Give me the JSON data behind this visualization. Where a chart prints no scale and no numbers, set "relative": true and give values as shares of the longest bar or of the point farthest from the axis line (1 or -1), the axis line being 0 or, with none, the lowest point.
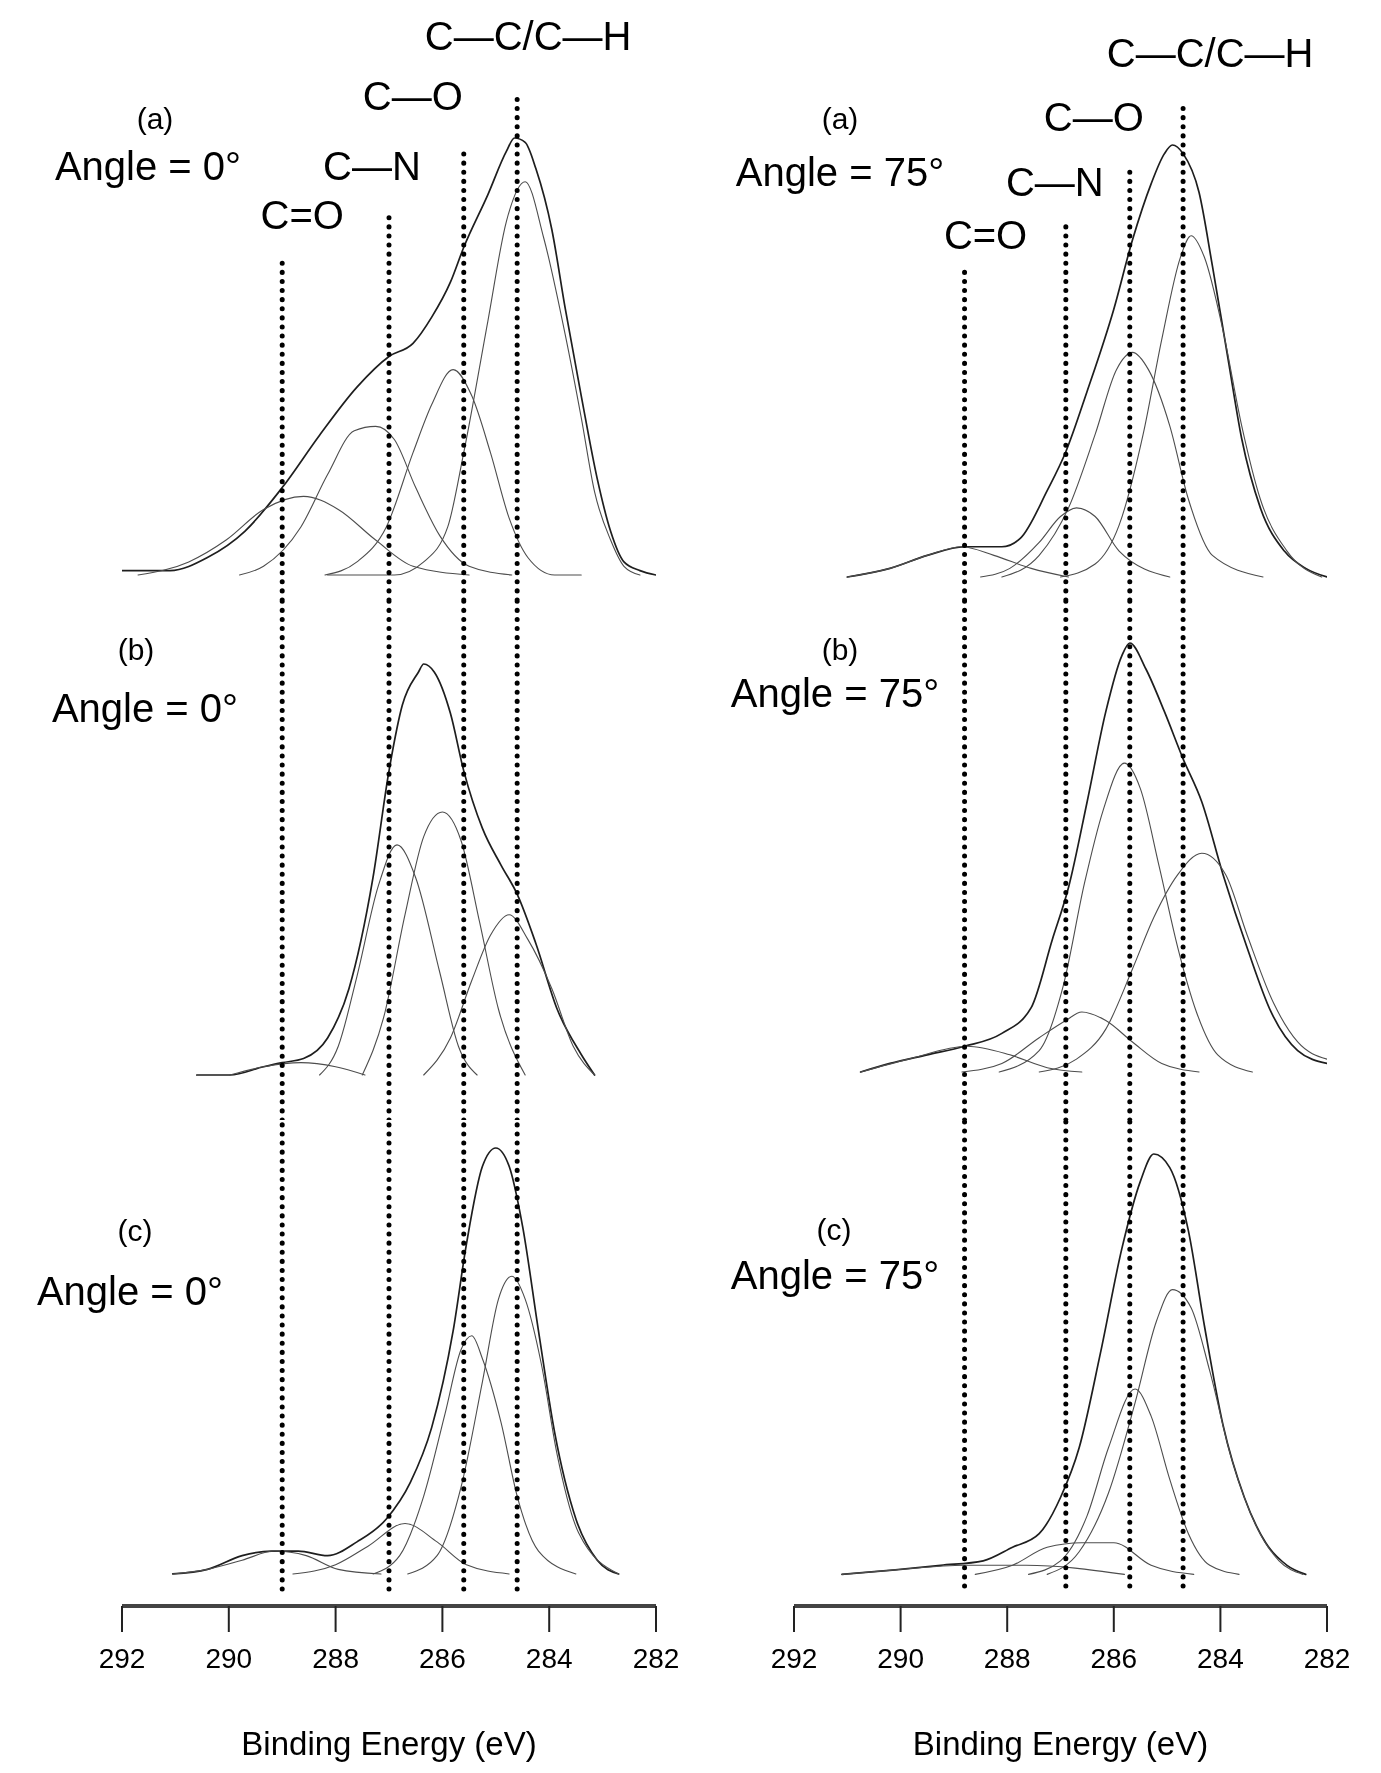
{
  "chart_data": [
    {
      "type": "line",
      "annotations": [
        "(a)",
        "Angle = 0°"
      ],
      "relative": true,
      "xlim": [
        292,
        282
      ],
      "tick_labels": false,
      "ref_lines": [
        {
          "axis": "x",
          "value": 289.0,
          "label": "C=O",
          "line_style": "dotted",
          "color": "#000000"
        },
        {
          "axis": "x",
          "value": 287.0,
          "label": "C—N",
          "line_style": "dotted",
          "color": "#000000"
        },
        {
          "axis": "x",
          "value": 285.6,
          "label": "C—O",
          "line_style": "dotted",
          "color": "#000000"
        },
        {
          "axis": "x",
          "value": 284.6,
          "label": "C—C/C—H",
          "line_style": "dotted",
          "color": "#000000"
        }
      ],
      "series": [
        {
          "color": "#1e1e1e",
          "x": [
            292.0,
            291.1,
            290.4,
            289.7,
            289.0,
            288.3,
            287.6,
            287.0,
            286.55,
            286.2,
            285.85,
            285.6,
            285.15,
            284.8,
            284.65,
            284.45,
            284.25,
            283.95,
            283.7,
            283.4,
            283.1,
            282.85,
            282.6,
            282.3,
            282.0
          ],
          "values": [
            0.01,
            0.01,
            0.04,
            0.1,
            0.2,
            0.32,
            0.43,
            0.5,
            0.53,
            0.59,
            0.67,
            0.75,
            0.87,
            0.97,
            1.0,
            0.99,
            0.93,
            0.79,
            0.61,
            0.41,
            0.22,
            0.1,
            0.03,
            0.01,
            0
          ]
        },
        {
          "color": "#4d4d4d",
          "x": [
            291.7,
            290.75,
            290.05,
            289.35,
            288.6,
            287.95,
            287.25,
            286.55,
            285.5
          ],
          "values": [
            0,
            0.03,
            0.08,
            0.15,
            0.18,
            0.15,
            0.08,
            0.02,
            0
          ]
        },
        {
          "color": "#4d4d4d",
          "x": [
            289.8,
            289.35,
            288.65,
            288.15,
            287.65,
            287.25,
            286.9,
            286.5,
            286.05,
            285.5,
            284.7
          ],
          "values": [
            0,
            0.02,
            0.11,
            0.23,
            0.33,
            0.34,
            0.31,
            0.2,
            0.09,
            0.02,
            0
          ]
        },
        {
          "color": "#4d4d4d",
          "x": [
            288.2,
            287.6,
            287.05,
            286.55,
            286.2,
            285.8,
            285.45,
            285.1,
            284.75,
            284.4,
            283.9,
            283.4
          ],
          "values": [
            0,
            0.03,
            0.11,
            0.28,
            0.39,
            0.47,
            0.41,
            0.28,
            0.13,
            0.04,
            0,
            0
          ]
        },
        {
          "color": "#4d4d4d",
          "x": [
            288.15,
            286.9,
            286.35,
            285.9,
            285.6,
            285.15,
            284.8,
            284.45,
            284.1,
            283.7,
            283.4,
            283.15,
            282.85,
            282.6,
            282.3
          ],
          "values": [
            0,
            0,
            0.03,
            0.11,
            0.28,
            0.58,
            0.81,
            0.9,
            0.77,
            0.55,
            0.36,
            0.19,
            0.08,
            0.02,
            0
          ]
        }
      ]
    },
    {
      "type": "line",
      "annotations": [
        "(b)",
        "Angle = 0°"
      ],
      "relative": true,
      "xlim": [
        292,
        282
      ],
      "tick_labels": false,
      "ref_lines": [
        {
          "axis": "x",
          "value": 289.0,
          "line_style": "dotted",
          "color": "#000000"
        },
        {
          "axis": "x",
          "value": 287.0,
          "line_style": "dotted",
          "color": "#000000"
        },
        {
          "axis": "x",
          "value": 285.6,
          "line_style": "dotted",
          "color": "#000000"
        },
        {
          "axis": "x",
          "value": 284.6,
          "line_style": "dotted",
          "color": "#000000"
        }
      ],
      "series": [
        {
          "color": "#1e1e1e",
          "x": [
            290.6,
            289.98,
            289.35,
            289.0,
            288.6,
            288.15,
            287.75,
            287.3,
            287.0,
            286.75,
            286.45,
            286.35,
            286.15,
            285.85,
            285.6,
            285.25,
            284.9,
            284.6,
            284.25,
            283.85,
            283.4,
            283.15
          ],
          "values": [
            0,
            0,
            0.02,
            0.03,
            0.04,
            0.09,
            0.21,
            0.48,
            0.74,
            0.9,
            0.98,
            1.0,
            0.98,
            0.88,
            0.74,
            0.6,
            0.51,
            0.44,
            0.32,
            0.16,
            0.05,
            0
          ]
        },
        {
          "color": "#4d4d4d",
          "x": [
            289.98,
            289.35,
            288.65,
            288.0,
            287.45
          ],
          "values": [
            0,
            0.02,
            0.03,
            0.02,
            0
          ]
        },
        {
          "color": "#4d4d4d",
          "x": [
            288.3,
            287.95,
            287.6,
            287.2,
            286.85,
            286.5,
            286.05,
            285.7,
            285.35
          ],
          "values": [
            0,
            0.07,
            0.24,
            0.46,
            0.56,
            0.48,
            0.25,
            0.07,
            0
          ]
        },
        {
          "color": "#4d4d4d",
          "x": [
            287.5,
            287.1,
            286.7,
            286.35,
            286.0,
            285.65,
            285.3,
            284.95,
            284.45
          ],
          "values": [
            0,
            0.14,
            0.39,
            0.58,
            0.64,
            0.57,
            0.37,
            0.16,
            0
          ]
        },
        {
          "color": "#4d4d4d",
          "x": [
            286.35,
            285.85,
            285.45,
            285.1,
            284.75,
            284.4,
            283.95,
            283.55,
            283.15
          ],
          "values": [
            0,
            0.09,
            0.23,
            0.34,
            0.39,
            0.33,
            0.21,
            0.07,
            0
          ]
        }
      ]
    },
    {
      "type": "line",
      "annotations": [
        "(c)",
        "Angle = 0°"
      ],
      "relative": true,
      "xlim": [
        292,
        282
      ],
      "xlabel": "Binding Energy (eV)",
      "xticks": [
        292,
        290,
        288,
        286,
        284,
        282
      ],
      "ref_lines": [
        {
          "axis": "x",
          "value": 289.0,
          "line_style": "dotted",
          "color": "#000000"
        },
        {
          "axis": "x",
          "value": 287.0,
          "line_style": "dotted",
          "color": "#000000"
        },
        {
          "axis": "x",
          "value": 285.6,
          "line_style": "dotted",
          "color": "#000000"
        },
        {
          "axis": "x",
          "value": 284.6,
          "line_style": "dotted",
          "color": "#000000"
        }
      ],
      "series": [
        {
          "color": "#1e1e1e",
          "x": [
            291.05,
            290.4,
            289.75,
            289.2,
            288.7,
            288.15,
            287.6,
            287.05,
            286.6,
            286.2,
            285.8,
            285.55,
            285.25,
            285.0,
            284.75,
            284.5,
            284.2,
            283.9,
            283.5,
            283.1,
            282.7
          ],
          "values": [
            0.07,
            0.08,
            0.11,
            0.12,
            0.12,
            0.11,
            0.14,
            0.19,
            0.27,
            0.39,
            0.6,
            0.79,
            0.96,
            1.0,
            0.96,
            0.83,
            0.6,
            0.38,
            0.19,
            0.1,
            0.07
          ]
        },
        {
          "color": "#4d4d4d",
          "x": [
            291.05,
            290.4,
            289.75,
            289.15,
            288.55,
            287.95,
            287.15
          ],
          "values": [
            0.07,
            0.08,
            0.1,
            0.12,
            0.11,
            0.08,
            0.07
          ]
        },
        {
          "color": "#4d4d4d",
          "x": [
            288.8,
            288.0,
            287.4,
            286.7,
            286.1,
            285.55,
            284.75
          ],
          "values": [
            0.07,
            0.09,
            0.13,
            0.18,
            0.14,
            0.09,
            0.07
          ]
        },
        {
          "color": "#4d4d4d",
          "x": [
            287.3,
            286.8,
            286.35,
            285.95,
            285.65,
            285.45,
            285.25,
            284.9,
            284.6,
            284.2,
            283.5
          ],
          "values": [
            0.07,
            0.11,
            0.24,
            0.42,
            0.56,
            0.59,
            0.54,
            0.4,
            0.24,
            0.12,
            0.07
          ]
        },
        {
          "color": "#4d4d4d",
          "x": [
            286.65,
            286.1,
            285.65,
            285.25,
            284.95,
            284.7,
            284.45,
            284.15,
            283.85,
            283.45,
            282.7
          ],
          "values": [
            0.07,
            0.11,
            0.26,
            0.49,
            0.67,
            0.72,
            0.67,
            0.53,
            0.33,
            0.16,
            0.07
          ]
        }
      ]
    },
    {
      "type": "line",
      "annotations": [
        "(a)",
        "Angle = 75°"
      ],
      "relative": true,
      "xlim": [
        292,
        282
      ],
      "tick_labels": false,
      "ref_lines": [
        {
          "axis": "x",
          "value": 288.8,
          "label": "C=O",
          "line_style": "dotted",
          "color": "#000000"
        },
        {
          "axis": "x",
          "value": 286.9,
          "label": "C—N",
          "line_style": "dotted",
          "color": "#000000"
        },
        {
          "axis": "x",
          "value": 285.7,
          "label": "C—O",
          "line_style": "dotted",
          "color": "#000000"
        },
        {
          "axis": "x",
          "value": 284.7,
          "label": "C—C/C—H",
          "line_style": "dotted",
          "color": "#000000"
        }
      ],
      "series": [
        {
          "color": "#1e1e1e",
          "x": [
            291.0,
            290.2,
            289.5,
            288.8,
            288.1,
            287.75,
            287.25,
            286.9,
            286.5,
            286.0,
            285.65,
            285.3,
            285.05,
            284.9,
            284.7,
            284.4,
            284.15,
            283.85,
            283.6,
            283.25,
            282.8,
            282.4,
            282.0
          ],
          "values": [
            0,
            0.02,
            0.05,
            0.07,
            0.07,
            0.09,
            0.2,
            0.29,
            0.43,
            0.62,
            0.78,
            0.91,
            0.98,
            1.0,
            0.98,
            0.89,
            0.72,
            0.5,
            0.32,
            0.16,
            0.06,
            0.02,
            0
          ]
        },
        {
          "color": "#4d4d4d",
          "x": [
            291.0,
            290.2,
            289.5,
            288.85,
            288.25,
            287.55,
            286.85
          ],
          "values": [
            0,
            0.02,
            0.05,
            0.07,
            0.05,
            0.02,
            0
          ]
        },
        {
          "color": "#4d4d4d",
          "x": [
            288.5,
            287.95,
            287.4,
            287.0,
            286.7,
            286.35,
            285.9,
            284.95
          ],
          "values": [
            0,
            0.02,
            0.08,
            0.14,
            0.16,
            0.14,
            0.06,
            0
          ]
        },
        {
          "color": "#4d4d4d",
          "x": [
            288.1,
            287.4,
            286.85,
            286.35,
            285.95,
            285.65,
            285.35,
            284.95,
            284.6,
            284.15,
            283.2
          ],
          "values": [
            0,
            0.05,
            0.16,
            0.33,
            0.48,
            0.52,
            0.48,
            0.35,
            0.18,
            0.05,
            0
          ]
        },
        {
          "color": "#4d4d4d",
          "x": [
            287.0,
            286.35,
            285.9,
            285.45,
            285.1,
            284.75,
            284.55,
            284.3,
            283.95,
            283.6,
            283.25,
            282.75,
            282.1
          ],
          "values": [
            0,
            0.03,
            0.12,
            0.33,
            0.55,
            0.74,
            0.79,
            0.74,
            0.57,
            0.35,
            0.18,
            0.06,
            0
          ]
        }
      ]
    },
    {
      "type": "line",
      "annotations": [
        "(b)",
        "Angle = 75°"
      ],
      "relative": true,
      "xlim": [
        292,
        282
      ],
      "tick_labels": false,
      "ref_lines": [
        {
          "axis": "x",
          "value": 288.8,
          "line_style": "dotted",
          "color": "#000000"
        },
        {
          "axis": "x",
          "value": 286.9,
          "line_style": "dotted",
          "color": "#000000"
        },
        {
          "axis": "x",
          "value": 285.7,
          "line_style": "dotted",
          "color": "#000000"
        },
        {
          "axis": "x",
          "value": 284.7,
          "line_style": "dotted",
          "color": "#000000"
        }
      ],
      "series": [
        {
          "color": "#1e1e1e",
          "x": [
            290.75,
            290.2,
            289.5,
            288.8,
            288.1,
            287.55,
            287.15,
            286.85,
            286.5,
            286.15,
            285.85,
            285.7,
            285.4,
            285.05,
            284.7,
            284.35,
            283.95,
            283.5,
            283.05,
            282.55,
            282.0
          ],
          "values": [
            0,
            0.02,
            0.04,
            0.06,
            0.09,
            0.15,
            0.31,
            0.43,
            0.63,
            0.84,
            0.97,
            1.0,
            0.94,
            0.84,
            0.73,
            0.63,
            0.46,
            0.29,
            0.14,
            0.05,
            0.02
          ]
        },
        {
          "color": "#4d4d4d",
          "x": [
            290.75,
            289.85,
            288.75,
            287.95,
            287.25,
            286.6
          ],
          "values": [
            0,
            0.03,
            0.06,
            0.04,
            0.01,
            0
          ]
        },
        {
          "color": "#4d4d4d",
          "x": [
            288.85,
            288.1,
            287.4,
            286.9,
            286.6,
            286.15,
            285.65,
            285.1,
            284.4
          ],
          "values": [
            0,
            0.02,
            0.08,
            0.12,
            0.14,
            0.12,
            0.07,
            0.02,
            0
          ]
        },
        {
          "color": "#4d4d4d",
          "x": [
            288.15,
            287.4,
            286.95,
            286.55,
            286.2,
            285.8,
            285.5,
            285.15,
            284.8,
            284.45,
            284.05,
            283.4
          ],
          "values": [
            0,
            0.05,
            0.2,
            0.44,
            0.61,
            0.72,
            0.66,
            0.48,
            0.29,
            0.14,
            0.04,
            0
          ]
        },
        {
          "color": "#4d4d4d",
          "x": [
            287.4,
            286.7,
            286.15,
            285.65,
            285.25,
            284.8,
            284.35,
            283.9,
            283.5,
            283.0,
            282.55,
            282.0
          ],
          "values": [
            0,
            0.03,
            0.1,
            0.24,
            0.36,
            0.46,
            0.51,
            0.46,
            0.32,
            0.16,
            0.07,
            0.03
          ]
        }
      ]
    },
    {
      "type": "line",
      "annotations": [
        "(c)",
        "Angle = 75°"
      ],
      "relative": true,
      "xlim": [
        292,
        282
      ],
      "xlabel": "Binding Energy (eV)",
      "xticks": [
        292,
        290,
        288,
        286,
        284,
        282
      ],
      "ref_lines": [
        {
          "axis": "x",
          "value": 288.8,
          "line_style": "dotted",
          "color": "#000000"
        },
        {
          "axis": "x",
          "value": 286.9,
          "line_style": "dotted",
          "color": "#000000"
        },
        {
          "axis": "x",
          "value": 285.7,
          "line_style": "dotted",
          "color": "#000000"
        },
        {
          "axis": "x",
          "value": 284.7,
          "line_style": "dotted",
          "color": "#000000"
        }
      ],
      "series": [
        {
          "color": "#1e1e1e",
          "x": [
            291.1,
            290.1,
            289.25,
            288.45,
            287.9,
            287.4,
            287.0,
            286.65,
            286.25,
            285.85,
            285.5,
            285.25,
            284.95,
            284.6,
            284.3,
            283.95,
            283.55,
            283.15,
            282.75,
            282.4
          ],
          "values": [
            0.07,
            0.08,
            0.09,
            0.1,
            0.13,
            0.16,
            0.24,
            0.35,
            0.56,
            0.79,
            0.94,
            1.0,
            0.97,
            0.83,
            0.62,
            0.4,
            0.24,
            0.14,
            0.09,
            0.07
          ]
        },
        {
          "color": "#4d4d4d",
          "x": [
            291.1,
            290.1,
            288.8,
            287.65,
            285.8
          ],
          "values": [
            0.07,
            0.08,
            0.09,
            0.09,
            0.07
          ]
        },
        {
          "color": "#4d4d4d",
          "x": [
            288.6,
            287.9,
            287.25,
            286.6,
            286.0,
            285.3,
            284.5
          ],
          "values": [
            0.07,
            0.09,
            0.13,
            0.14,
            0.14,
            0.09,
            0.07
          ]
        },
        {
          "color": "#4d4d4d",
          "x": [
            287.6,
            287.0,
            286.5,
            286.1,
            285.6,
            285.3,
            284.95,
            284.6,
            284.2,
            283.65
          ],
          "values": [
            0.07,
            0.1,
            0.2,
            0.35,
            0.48,
            0.42,
            0.28,
            0.16,
            0.09,
            0.07
          ]
        },
        {
          "color": "#4d4d4d",
          "x": [
            287.25,
            286.65,
            286.1,
            285.6,
            285.2,
            284.9,
            284.55,
            284.2,
            283.8,
            283.3,
            282.9,
            282.45
          ],
          "values": [
            0.07,
            0.12,
            0.25,
            0.45,
            0.63,
            0.7,
            0.66,
            0.52,
            0.33,
            0.17,
            0.1,
            0.07
          ]
        }
      ]
    }
  ]
}
